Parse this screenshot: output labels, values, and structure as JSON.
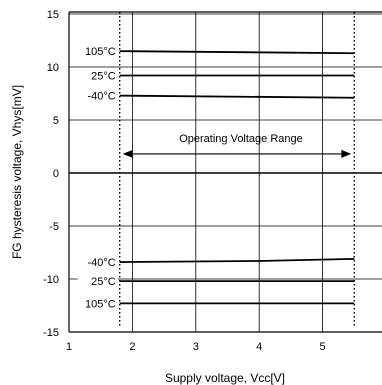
{
  "chart_data": {
    "type": "line",
    "title": "",
    "xlabel": "Supply voltage, Vcc[V]",
    "ylabel": "FG hysteresis voltage, Vhys[mV]",
    "xlim": [
      1,
      6
    ],
    "ylim": [
      -15,
      15
    ],
    "xticks": [
      1,
      2,
      3,
      4,
      5,
      6
    ],
    "xtick_labels": [
      "1",
      "2",
      "3",
      "4",
      "5",
      "6"
    ],
    "yticks": [
      -15,
      -10,
      -5,
      0,
      5,
      10,
      15
    ],
    "ytick_labels": [
      "-15",
      "-10",
      "-5",
      "0",
      "5",
      "10",
      "15"
    ],
    "grid": true,
    "legend": "none",
    "series": [
      {
        "name": "105°C",
        "x": [
          1.8,
          5.5
        ],
        "y": [
          11.5,
          11.3
        ]
      },
      {
        "name": "25°C",
        "x": [
          1.8,
          5.5
        ],
        "y": [
          9.2,
          9.2
        ]
      },
      {
        "name": "-40°C",
        "x": [
          1.8,
          5.5
        ],
        "y": [
          7.3,
          7.1
        ]
      },
      {
        "name": "-40°C",
        "x": [
          1.8,
          4.0,
          5.5
        ],
        "y": [
          -8.4,
          -8.3,
          -8.1
        ]
      },
      {
        "name": "25°C",
        "x": [
          1.8,
          5.5
        ],
        "y": [
          -10.2,
          -10.2
        ]
      },
      {
        "name": "105°C",
        "x": [
          1.8,
          5.5
        ],
        "y": [
          -12.3,
          -12.3
        ]
      }
    ],
    "annotations": {
      "range_label": "Operating Voltage Range",
      "range_x": [
        1.8,
        5.5
      ],
      "range_arrow_y": 1.8
    }
  }
}
